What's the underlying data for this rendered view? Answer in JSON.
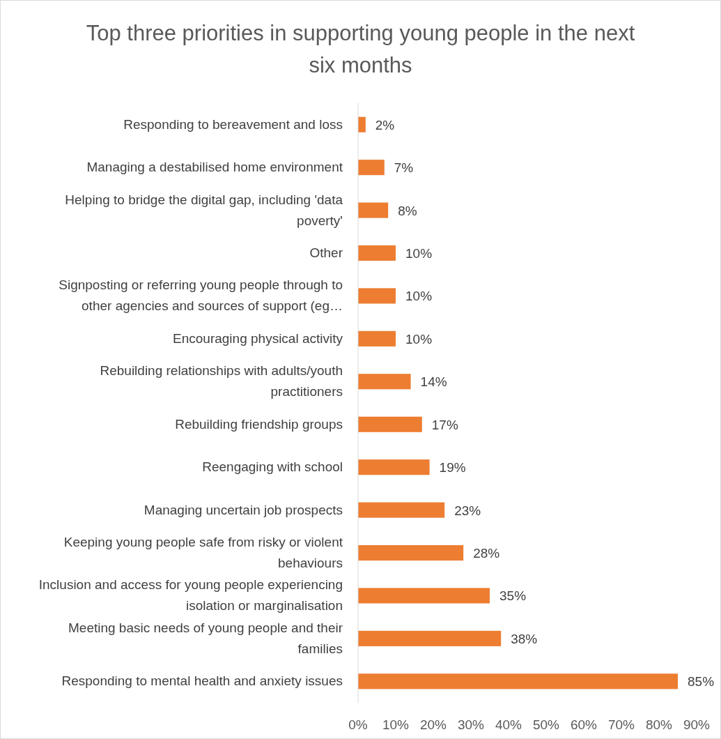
{
  "chart_data": {
    "type": "bar",
    "orientation": "horizontal",
    "title": "Top three priorities in supporting young people in the next six months",
    "categories": [
      "Responding to bereavement and loss",
      "Managing a destabilised home environment",
      "Helping to bridge the digital gap, including 'data poverty'",
      "Other",
      "Signposting or referring young people through to other agencies and sources of support (eg…",
      "Encouraging physical activity",
      "Rebuilding relationships with adults/youth practitioners",
      "Rebuilding friendship groups",
      "Reengaging with school",
      "Managing uncertain job prospects",
      "Keeping young people safe from risky or violent behaviours",
      "Inclusion and access for young people experiencing isolation or marginalisation",
      "Meeting basic needs of young people and their families",
      "Responding to mental health and anxiety issues"
    ],
    "values": [
      2,
      7,
      8,
      10,
      10,
      10,
      14,
      17,
      19,
      23,
      28,
      35,
      38,
      85
    ],
    "value_labels": [
      "2%",
      "7%",
      "8%",
      "10%",
      "10%",
      "10%",
      "14%",
      "17%",
      "19%",
      "23%",
      "28%",
      "35%",
      "38%",
      "85%"
    ],
    "color": "#ed7d31",
    "xlim": [
      0,
      90
    ],
    "xticks": [
      {
        "value": 0,
        "label": "0%"
      },
      {
        "value": 10,
        "label": "10%"
      },
      {
        "value": 20,
        "label": "20%"
      },
      {
        "value": 30,
        "label": "30%"
      },
      {
        "value": 40,
        "label": "40%"
      },
      {
        "value": 50,
        "label": "50%"
      },
      {
        "value": 60,
        "label": "60%"
      },
      {
        "value": 70,
        "label": "70%"
      },
      {
        "value": 80,
        "label": "80%"
      },
      {
        "value": 90,
        "label": "90%"
      }
    ],
    "grid": false
  }
}
